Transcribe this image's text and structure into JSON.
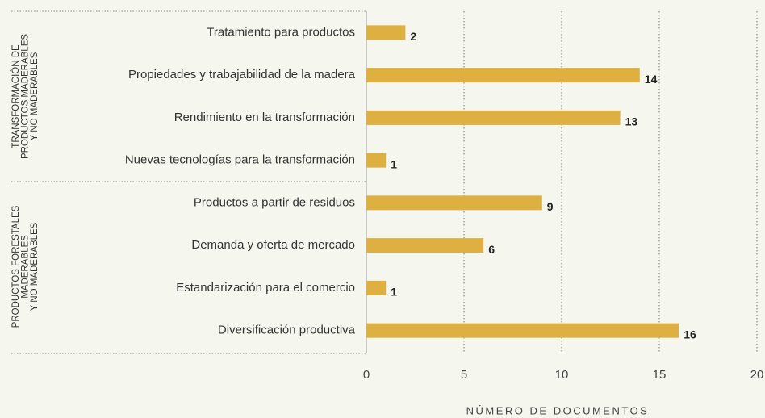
{
  "chart_data": {
    "type": "bar",
    "orientation": "horizontal",
    "color": "#deb041",
    "xlabel": "NÚMERO DE DOCUMENTOS",
    "xlim": [
      0,
      20
    ],
    "xticks": [
      0,
      5,
      10,
      15,
      20
    ],
    "grid": true,
    "groups": [
      {
        "label": [
          "TRANSFORMACIÓN DE",
          "PRODUCTOS MADERABLES",
          "Y NO MADERABLES"
        ],
        "categories": [
          "Tratamiento para productos",
          "Propiedades y trabajabilidad de la madera",
          "Rendimiento en la transformación",
          "Nuevas tecnologías para la transformación"
        ],
        "values": [
          2,
          14,
          13,
          1
        ]
      },
      {
        "label": [
          "PRODUCTOS FORESTALES",
          "MADERABLES",
          "Y NO MADERABLES"
        ],
        "categories": [
          "Productos a partir de residuos",
          "Demanda y oferta de mercado",
          "Estandarización para el comercio",
          "Diversificación productiva"
        ],
        "values": [
          9,
          6,
          1,
          16
        ]
      }
    ]
  }
}
